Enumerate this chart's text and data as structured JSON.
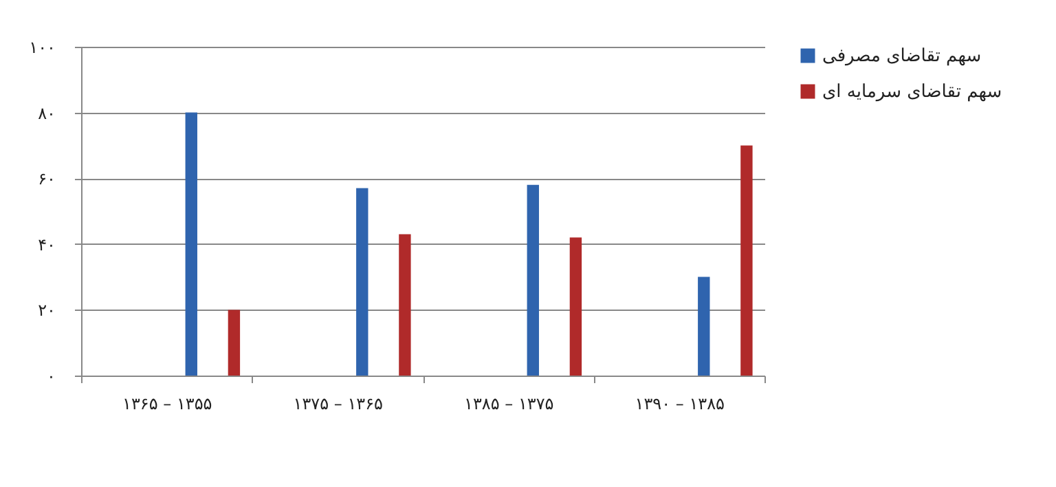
{
  "chart_data": {
    "type": "bar",
    "categories": [
      "۱۳۶۵ – ۱۳۵۵",
      "۱۳۷۵ – ۱۳۶۵",
      "۱۳۸۵ – ۱۳۷۵",
      "۱۳۹۰ – ۱۳۸۵"
    ],
    "series": [
      {
        "name": "سهم تقاضای مصرفی",
        "color": "#2f64ae",
        "values": [
          80,
          57,
          58,
          30
        ]
      },
      {
        "name": "سهم تقاضای سرمایه ای",
        "color": "#b02a2a",
        "values": [
          20,
          43,
          42,
          70
        ]
      }
    ],
    "ylim": [
      0,
      100
    ],
    "yticks": [
      {
        "value": 0,
        "label": "۰"
      },
      {
        "value": 20,
        "label": "۲۰"
      },
      {
        "value": 40,
        "label": "۴۰"
      },
      {
        "value": 60,
        "label": "۶۰"
      },
      {
        "value": 80,
        "label": "۸۰"
      },
      {
        "value": 100,
        "label": "۱۰۰"
      }
    ],
    "grid": "y",
    "legend": "right"
  }
}
